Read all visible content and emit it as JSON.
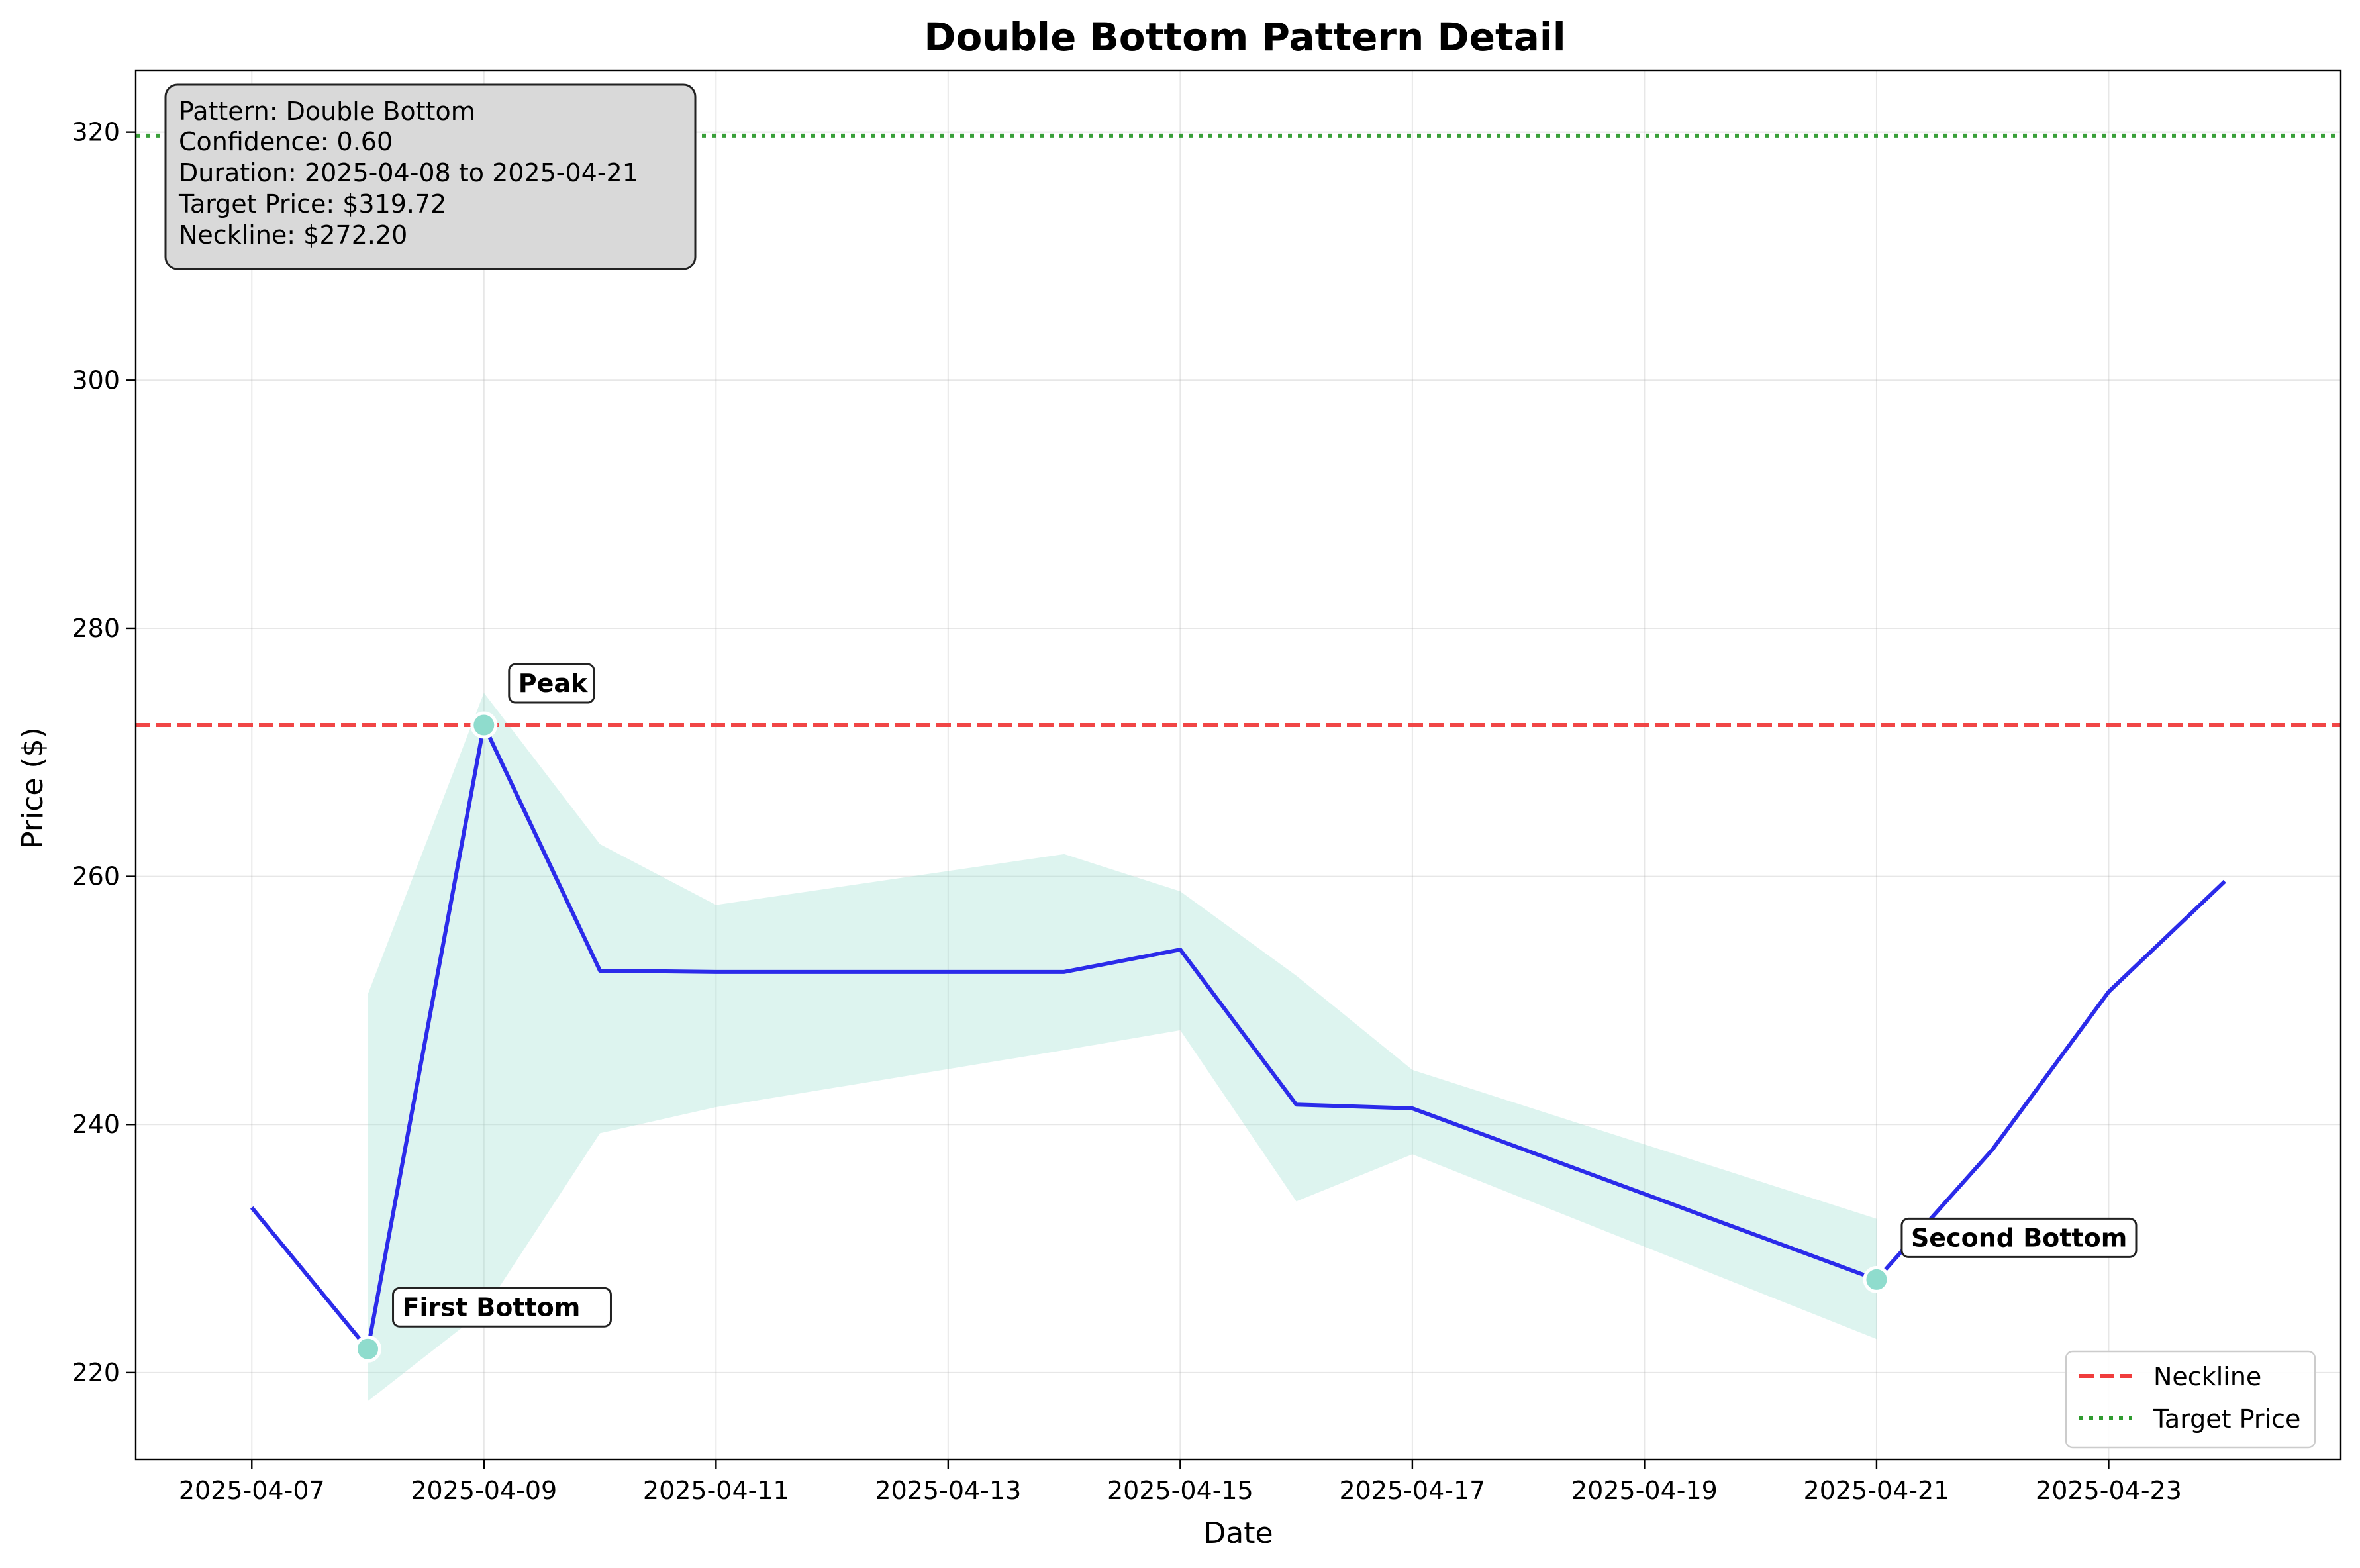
{
  "chart_data": {
    "type": "line",
    "title": "Double Bottom Pattern Detail",
    "xlabel": "Date",
    "ylabel": "Price ($)",
    "x_ticks": [
      "2025-04-07",
      "2025-04-09",
      "2025-04-11",
      "2025-04-13",
      "2025-04-15",
      "2025-04-17",
      "2025-04-19",
      "2025-04-21",
      "2025-04-23"
    ],
    "y_ticks": [
      220,
      240,
      260,
      280,
      300,
      320
    ],
    "xlim": [
      "2025-04-06",
      "2025-04-25"
    ],
    "ylim": [
      213,
      325
    ],
    "grid": true,
    "legend_position": "bottom-right",
    "series": [
      {
        "name": "",
        "color": "#2b2bea",
        "points": [
          {
            "x": "2025-04-07",
            "y": 233.3
          },
          {
            "x": "2025-04-08",
            "y": 221.9
          },
          {
            "x": "2025-04-09",
            "y": 272.2
          },
          {
            "x": "2025-04-10",
            "y": 252.4
          },
          {
            "x": "2025-04-11",
            "y": 252.3
          },
          {
            "x": "2025-04-14",
            "y": 252.3
          },
          {
            "x": "2025-04-15",
            "y": 254.1
          },
          {
            "x": "2025-04-16",
            "y": 241.6
          },
          {
            "x": "2025-04-17",
            "y": 241.3
          },
          {
            "x": "2025-04-21",
            "y": 227.5
          },
          {
            "x": "2025-04-22",
            "y": 238.0
          },
          {
            "x": "2025-04-23",
            "y": 250.7
          },
          {
            "x": "2025-04-24",
            "y": 259.6
          }
        ]
      }
    ],
    "band": {
      "color": "#9ee0d2",
      "upper": [
        {
          "x": "2025-04-08",
          "y": 250.5
        },
        {
          "x": "2025-04-09",
          "y": 274.8
        },
        {
          "x": "2025-04-10",
          "y": 262.6
        },
        {
          "x": "2025-04-11",
          "y": 257.7
        },
        {
          "x": "2025-04-14",
          "y": 261.8
        },
        {
          "x": "2025-04-15",
          "y": 258.8
        },
        {
          "x": "2025-04-16",
          "y": 252.0
        },
        {
          "x": "2025-04-17",
          "y": 244.4
        },
        {
          "x": "2025-04-21",
          "y": 232.4
        }
      ],
      "lower": [
        {
          "x": "2025-04-08",
          "y": 217.7
        },
        {
          "x": "2025-04-09",
          "y": 225.0
        },
        {
          "x": "2025-04-10",
          "y": 239.3
        },
        {
          "x": "2025-04-11",
          "y": 241.4
        },
        {
          "x": "2025-04-14",
          "y": 246.0
        },
        {
          "x": "2025-04-15",
          "y": 247.6
        },
        {
          "x": "2025-04-16",
          "y": 233.8
        },
        {
          "x": "2025-04-17",
          "y": 237.6
        },
        {
          "x": "2025-04-21",
          "y": 222.7
        }
      ]
    },
    "key_points": [
      {
        "label": "First Bottom",
        "x": "2025-04-08",
        "y": 221.9
      },
      {
        "label": "Peak",
        "x": "2025-04-09",
        "y": 272.2
      },
      {
        "label": "Second Bottom",
        "x": "2025-04-21",
        "y": 227.5
      }
    ],
    "key_point_color": "#8fdccd",
    "hlines": [
      {
        "name": "Neckline",
        "y": 272.2,
        "color": "#f03c3c",
        "style": "dashed"
      },
      {
        "name": "Target Price",
        "y": 319.72,
        "color": "#2e9a2e",
        "style": "dotted"
      }
    ],
    "info_box": [
      "Pattern: Double Bottom",
      "Confidence: 0.60",
      "Duration: 2025-04-08 to 2025-04-21",
      "Target Price: $319.72",
      "Neckline: $272.20"
    ]
  }
}
